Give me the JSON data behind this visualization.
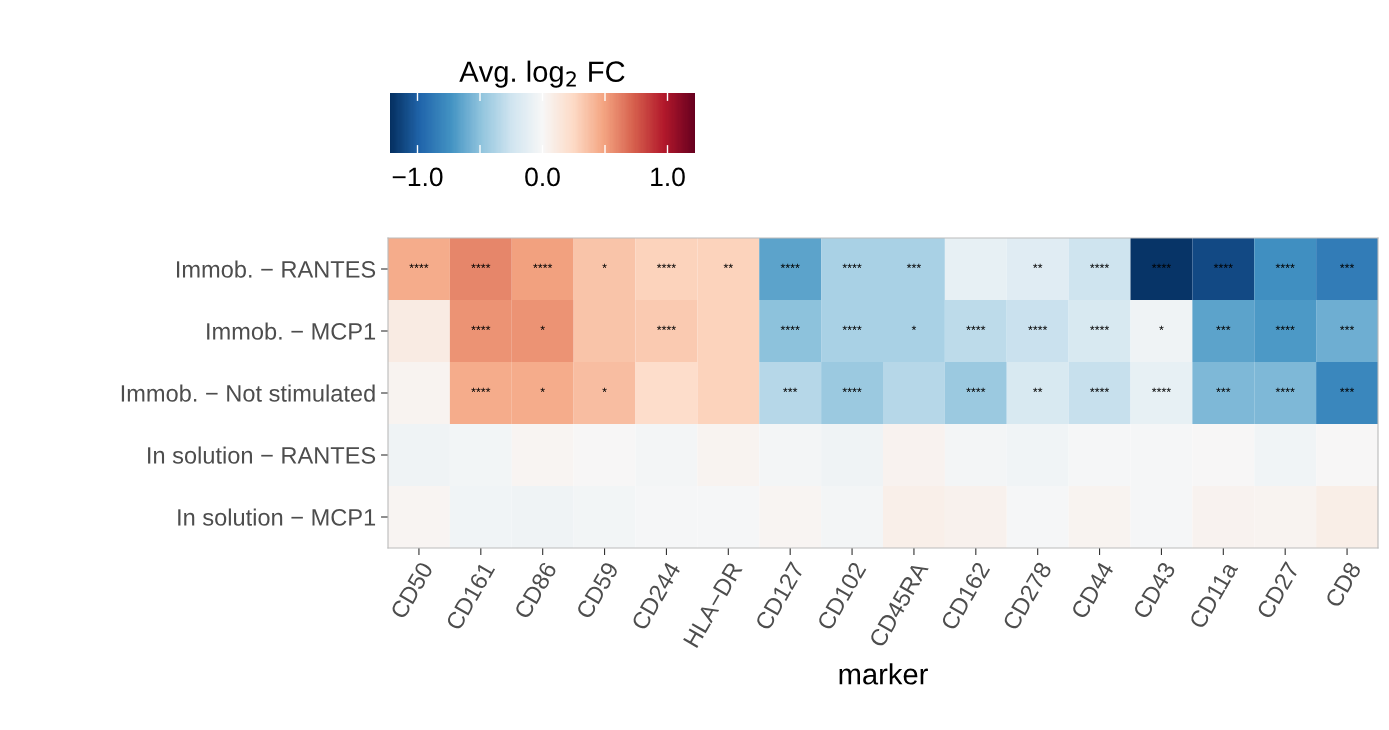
{
  "chart_data": {
    "type": "heatmap",
    "xlabel": "marker",
    "clabel": "Avg. log$_{2}$ FC",
    "categories": [
      "CD50",
      "CD161",
      "CD86",
      "CD59",
      "CD244",
      "HLA−DR",
      "CD127",
      "CD102",
      "CD45RA",
      "CD162",
      "CD278",
      "CD44",
      "CD43",
      "CD11a",
      "CD27",
      "CD8"
    ],
    "y_categories": [
      "Immob. − RANTES",
      "Immob. − MCP1",
      "Immob. − Not stimulated",
      "In solution − RANTES",
      "In solution − MCP1"
    ],
    "cells": [
      [
        0.45,
        0.6,
        0.5,
        0.35,
        0.28,
        0.28,
        -0.65,
        -0.4,
        -0.4,
        -0.1,
        -0.15,
        -0.25,
        -1.2,
        -1.1,
        -0.75,
        -0.85
      ],
      [
        0.1,
        0.55,
        0.55,
        0.35,
        0.32,
        0.28,
        -0.5,
        -0.4,
        -0.4,
        -0.32,
        -0.27,
        -0.2,
        -0.05,
        -0.65,
        -0.7,
        -0.6
      ],
      [
        0.03,
        0.45,
        0.45,
        0.38,
        0.22,
        0.28,
        -0.35,
        -0.45,
        -0.35,
        -0.45,
        -0.2,
        -0.28,
        -0.1,
        -0.55,
        -0.55,
        -0.8
      ],
      [
        -0.05,
        -0.03,
        0.02,
        0.0,
        -0.02,
        0.03,
        -0.02,
        -0.05,
        0.04,
        -0.02,
        -0.04,
        -0.01,
        -0.01,
        0.0,
        -0.04,
        0.0
      ],
      [
        0.02,
        -0.04,
        -0.05,
        -0.03,
        -0.01,
        -0.01,
        0.02,
        -0.02,
        0.07,
        0.05,
        -0.01,
        0.03,
        -0.01,
        0.04,
        0.03,
        0.08
      ]
    ],
    "cell_labels": [
      [
        "****",
        "****",
        "****",
        "*",
        "****",
        "**",
        "****",
        "****",
        "***",
        null,
        "**",
        "****",
        "****",
        "****",
        "****",
        "***"
      ],
      [
        null,
        "****",
        "*",
        null,
        "****",
        null,
        "****",
        "****",
        "*",
        "****",
        "****",
        "****",
        "*",
        "***",
        "****",
        "***"
      ],
      [
        null,
        "****",
        "*",
        "*",
        null,
        null,
        "***",
        "****",
        null,
        "****",
        "**",
        "****",
        "****",
        "***",
        "****",
        "***"
      ],
      [
        null,
        null,
        null,
        null,
        null,
        null,
        null,
        null,
        null,
        null,
        null,
        null,
        null,
        null,
        null,
        null
      ],
      [
        null,
        null,
        null,
        null,
        null,
        null,
        null,
        null,
        null,
        null,
        null,
        null,
        null,
        null,
        null,
        null
      ]
    ],
    "clim": [
      -1.22,
      1.22
    ],
    "cticks": [
      {
        "value": -1.0,
        "label": "−1.0"
      },
      {
        "value": -0.5,
        "label": null
      },
      {
        "value": 0.0,
        "label": "0.0"
      },
      {
        "value": 0.5,
        "label": null
      },
      {
        "value": 1.0,
        "label": "1.0"
      }
    ]
  }
}
